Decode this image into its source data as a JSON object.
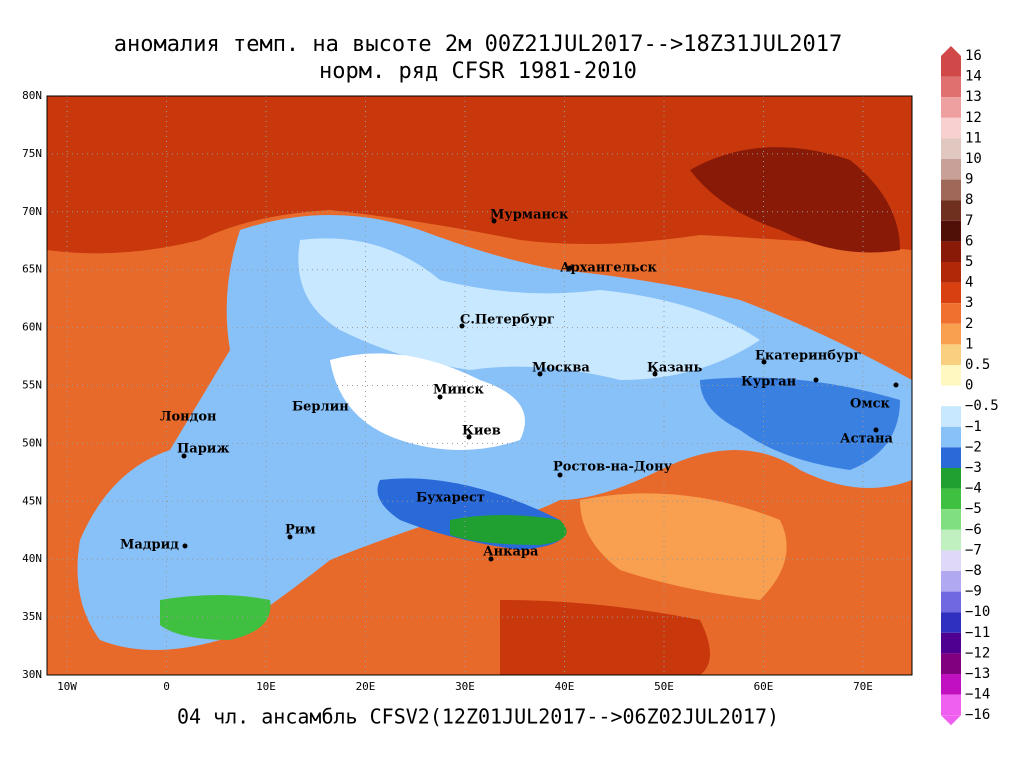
{
  "title": [
    "аномалия темп. на высоте 2м 00Z21JUL2017-->18Z31JUL2017",
    "норм. ряд CFSR 1981-2010"
  ],
  "footer": "04 чл. ансамбль CFSV2(12Z01JUL2017-->06Z02JUL2017)",
  "lat_labels": [
    "80N",
    "75N",
    "70N",
    "65N",
    "60N",
    "55N",
    "50N",
    "45N",
    "40N",
    "35N",
    "30N"
  ],
  "lon_labels": [
    "10W",
    "0",
    "10E",
    "20E",
    "30E",
    "40E",
    "50E",
    "60E",
    "70E"
  ],
  "cities": [
    "Мурманск",
    "Архангельск",
    "С.Петербург",
    "Москва",
    "Казань",
    "Екатеринбург",
    "Курган",
    "Омск",
    "Минск",
    "Берлин",
    "Лондон",
    "Киев",
    "Астана",
    "Париж",
    "Ростов-на-Дону",
    "Бухарест",
    "Рим",
    "Мадрид",
    "Анкара"
  ],
  "colorbar": {
    "labels": [
      "16",
      "14",
      "13",
      "12",
      "11",
      "10",
      "9",
      "8",
      "7",
      "6",
      "5",
      "4",
      "3",
      "2",
      "1",
      "0.5",
      "0",
      "−0.5",
      "−1",
      "−2",
      "−3",
      "−4",
      "−5",
      "−6",
      "−7",
      "−8",
      "−9",
      "−10",
      "−11",
      "−12",
      "−13",
      "−14",
      "−16"
    ],
    "colors": [
      "#d04848",
      "#e07070",
      "#eea0a0",
      "#f8d0d0",
      "#e0c8c0",
      "#c8a098",
      "#a06858",
      "#703020",
      "#501008",
      "#8a1a08",
      "#b02808",
      "#d84010",
      "#f07030",
      "#f8a050",
      "#fad080",
      "#fff8c0",
      "#ffffff",
      "#c8e8ff",
      "#88c0f8",
      "#2a6ad8",
      "#20a030",
      "#40c040",
      "#80e080",
      "#c0f0c0",
      "#e0d8f8",
      "#b0a8f0",
      "#7068e0",
      "#3030c0",
      "#500090",
      "#800080",
      "#c010c0",
      "#f060f0"
    ]
  }
}
